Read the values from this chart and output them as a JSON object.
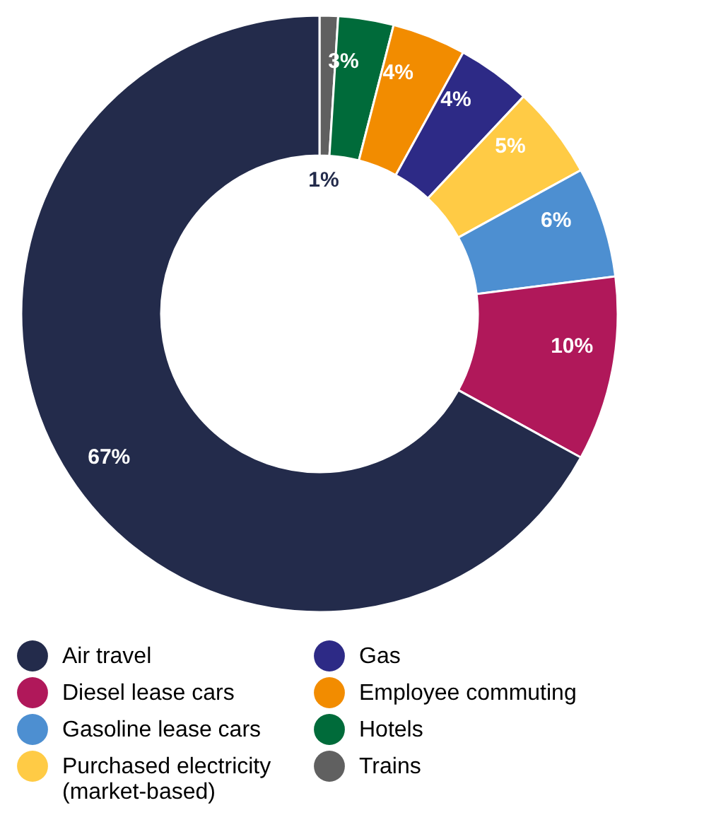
{
  "chart_data": {
    "type": "donut",
    "categories": [
      "Trains",
      "Hotels",
      "Employee commuting",
      "Gas",
      "Purchased electricity (market-based)",
      "Gasoline lease cars",
      "Diesel lease cars",
      "Air travel"
    ],
    "values": [
      1,
      3,
      4,
      4,
      5,
      6,
      10,
      67
    ],
    "colors": [
      "#606060",
      "#006b3a",
      "#f28c00",
      "#2d2a86",
      "#ffcb45",
      "#4d8fd1",
      "#b0185a",
      "#232b4b"
    ],
    "value_labels": [
      "1%",
      "3%",
      "4%",
      "4%",
      "5%",
      "6%",
      "10%",
      "67%"
    ],
    "legend": "bottom"
  }
}
